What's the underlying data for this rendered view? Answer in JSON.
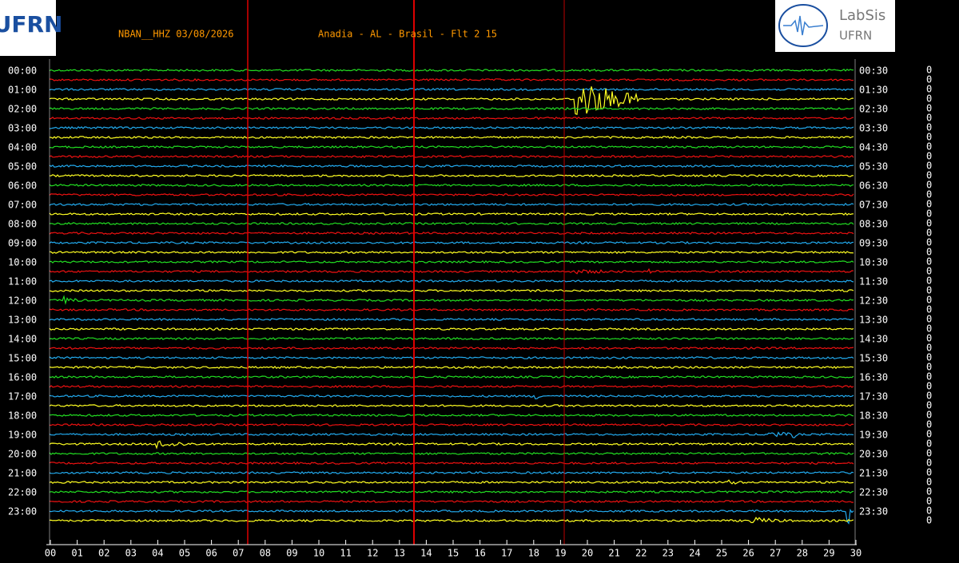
{
  "header": {
    "station": "NBAN__HHZ 03/08/2026",
    "location": "Anadia - AL - Brasil - Flt 2 15"
  },
  "logos": {
    "left": "UFRN",
    "right_title": "LabSis",
    "right_subtitle": "UFRN"
  },
  "left_labels": [
    "00:00",
    "01:00",
    "02:00",
    "03:00",
    "04:00",
    "05:00",
    "06:00",
    "07:00",
    "08:00",
    "09:00",
    "10:00",
    "11:00",
    "12:00",
    "13:00",
    "14:00",
    "15:00",
    "16:00",
    "17:00",
    "18:00",
    "19:00",
    "20:00",
    "21:00",
    "22:00",
    "23:00"
  ],
  "right_labels": [
    "00:30",
    "01:30",
    "02:30",
    "03:30",
    "04:30",
    "05:30",
    "06:30",
    "07:30",
    "08:30",
    "09:30",
    "10:30",
    "11:30",
    "12:30",
    "13:30",
    "14:30",
    "15:30",
    "16:30",
    "17:30",
    "18:30",
    "19:30",
    "20:30",
    "21:30",
    "22:30",
    "23:30"
  ],
  "right_values": [
    "0",
    "0",
    "0",
    "0",
    "0",
    "0",
    "0",
    "0",
    "0",
    "0",
    "0",
    "0",
    "0",
    "0",
    "0",
    "0",
    "0",
    "0",
    "0",
    "0",
    "0",
    "0",
    "0",
    "0",
    "0",
    "0",
    "0",
    "0",
    "0",
    "0",
    "0",
    "0",
    "0",
    "0",
    "0",
    "0",
    "0",
    "0",
    "0",
    "0",
    "0",
    "0",
    "0",
    "0",
    "0",
    "0",
    "0",
    "0"
  ],
  "x_labels": [
    "00",
    "01",
    "02",
    "03",
    "04",
    "05",
    "06",
    "07",
    "08",
    "09",
    "10",
    "11",
    "12",
    "13",
    "14",
    "15",
    "16",
    "17",
    "18",
    "19",
    "20",
    "21",
    "22",
    "23",
    "24",
    "25",
    "26",
    "27",
    "28",
    "29",
    "30"
  ]
}
